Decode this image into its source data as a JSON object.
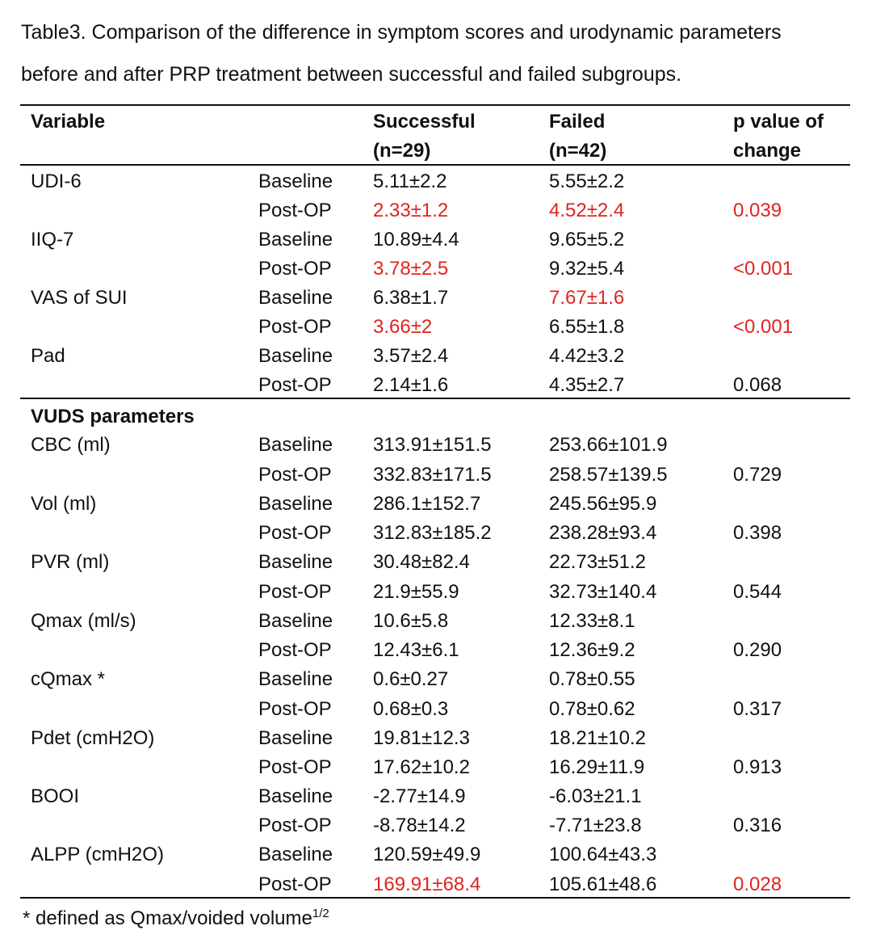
{
  "caption": {
    "line1": "Table3. Comparison of the difference in symptom scores and urodynamic parameters",
    "line2": "before and after PRP treatment between successful and failed subgroups."
  },
  "headers": {
    "variable": "Variable",
    "successful": "Successful",
    "successful_n": "(n=29)",
    "failed": "Failed",
    "failed_n": "(n=42)",
    "p_line1": "p value of",
    "p_line2": "change"
  },
  "accent_color": "#e0241f",
  "section_title": "VUDS  parameters",
  "groups": [
    {
      "name": "UDI-6",
      "rows": [
        {
          "time": "Baseline",
          "successful": "5.11±2.2",
          "failed": "5.55±2.2",
          "p": "",
          "successful_red": false,
          "failed_red": false,
          "p_red": false
        },
        {
          "time": "Post-OP",
          "successful": "2.33±1.2",
          "failed": "4.52±2.4",
          "p": "0.039",
          "successful_red": true,
          "failed_red": true,
          "p_red": true
        }
      ]
    },
    {
      "name": "IIQ-7",
      "rows": [
        {
          "time": "Baseline",
          "successful": "10.89±4.4",
          "failed": "9.65±5.2",
          "p": "",
          "successful_red": false,
          "failed_red": false,
          "p_red": false
        },
        {
          "time": "Post-OP",
          "successful": "3.78±2.5",
          "failed": "9.32±5.4",
          "p": "<0.001",
          "successful_red": true,
          "failed_red": false,
          "p_red": true
        }
      ]
    },
    {
      "name": "VAS of SUI",
      "rows": [
        {
          "time": "Baseline",
          "successful": "6.38±1.7",
          "failed": "7.67±1.6",
          "p": "",
          "successful_red": false,
          "failed_red": true,
          "p_red": false
        },
        {
          "time": "Post-OP",
          "successful": "3.66±2",
          "failed": "6.55±1.8",
          "p": "<0.001",
          "successful_red": true,
          "failed_red": false,
          "p_red": true
        }
      ]
    },
    {
      "name": "Pad",
      "rows": [
        {
          "time": "Baseline",
          "successful": "3.57±2.4",
          "failed": "4.42±3.2",
          "p": "",
          "successful_red": false,
          "failed_red": false,
          "p_red": false
        },
        {
          "time": "Post-OP",
          "successful": "2.14±1.6",
          "failed": "4.35±2.7",
          "p": "0.068",
          "successful_red": false,
          "failed_red": false,
          "p_red": false
        }
      ]
    },
    {
      "name": "CBC (ml)",
      "rows": [
        {
          "time": "Baseline",
          "successful": "313.91±151.5",
          "failed": "253.66±101.9",
          "p": "",
          "successful_red": false,
          "failed_red": false,
          "p_red": false
        },
        {
          "time": "Post-OP",
          "successful": "332.83±171.5",
          "failed": "258.57±139.5",
          "p": "0.729",
          "successful_red": false,
          "failed_red": false,
          "p_red": false
        }
      ]
    },
    {
      "name": "Vol (ml)",
      "rows": [
        {
          "time": "Baseline",
          "successful": "286.1±152.7",
          "failed": "245.56±95.9",
          "p": "",
          "successful_red": false,
          "failed_red": false,
          "p_red": false
        },
        {
          "time": "Post-OP",
          "successful": "312.83±185.2",
          "failed": "238.28±93.4",
          "p": "0.398",
          "successful_red": false,
          "failed_red": false,
          "p_red": false
        }
      ]
    },
    {
      "name": "PVR (ml)",
      "rows": [
        {
          "time": "Baseline",
          "successful": "30.48±82.4",
          "failed": "22.73±51.2",
          "p": "",
          "successful_red": false,
          "failed_red": false,
          "p_red": false
        },
        {
          "time": "Post-OP",
          "successful": "21.9±55.9",
          "failed": "32.73±140.4",
          "p": "0.544",
          "successful_red": false,
          "failed_red": false,
          "p_red": false
        }
      ]
    },
    {
      "name": "Qmax (ml/s)",
      "rows": [
        {
          "time": "Baseline",
          "successful": "10.6±5.8",
          "failed": "12.33±8.1",
          "p": "",
          "successful_red": false,
          "failed_red": false,
          "p_red": false
        },
        {
          "time": "Post-OP",
          "successful": "12.43±6.1",
          "failed": "12.36±9.2",
          "p": "0.290",
          "successful_red": false,
          "failed_red": false,
          "p_red": false
        }
      ]
    },
    {
      "name": "cQmax *",
      "rows": [
        {
          "time": "Baseline",
          "successful": "0.6±0.27",
          "failed": "0.78±0.55",
          "p": "",
          "successful_red": false,
          "failed_red": false,
          "p_red": false
        },
        {
          "time": "Post-OP",
          "successful": "0.68±0.3",
          "failed": "0.78±0.62",
          "p": "0.317",
          "successful_red": false,
          "failed_red": false,
          "p_red": false
        }
      ]
    },
    {
      "name": "Pdet (cmH2O)",
      "rows": [
        {
          "time": "Baseline",
          "successful": "19.81±12.3",
          "failed": "18.21±10.2",
          "p": "",
          "successful_red": false,
          "failed_red": false,
          "p_red": false
        },
        {
          "time": "Post-OP",
          "successful": "17.62±10.2",
          "failed": "16.29±11.9",
          "p": "0.913",
          "successful_red": false,
          "failed_red": false,
          "p_red": false
        }
      ]
    },
    {
      "name": "BOOI",
      "rows": [
        {
          "time": "Baseline",
          "successful": "-2.77±14.9",
          "failed": "-6.03±21.1",
          "p": "",
          "successful_red": false,
          "failed_red": false,
          "p_red": false
        },
        {
          "time": "Post-OP",
          "successful": "-8.78±14.2",
          "failed": "-7.71±23.8",
          "p": "0.316",
          "successful_red": false,
          "failed_red": false,
          "p_red": false
        }
      ]
    },
    {
      "name": "ALPP (cmH2O)",
      "rows": [
        {
          "time": "Baseline",
          "successful": "120.59±49.9",
          "failed": "100.64±43.3",
          "p": "",
          "successful_red": false,
          "failed_red": false,
          "p_red": false
        },
        {
          "time": "Post-OP",
          "successful": "169.91±68.4",
          "failed": "105.61±48.6",
          "p": "0.028",
          "successful_red": true,
          "failed_red": false,
          "p_red": true
        }
      ]
    }
  ],
  "footnote": {
    "text": "* defined as Qmax/voided volume",
    "superscript": "1/2"
  }
}
